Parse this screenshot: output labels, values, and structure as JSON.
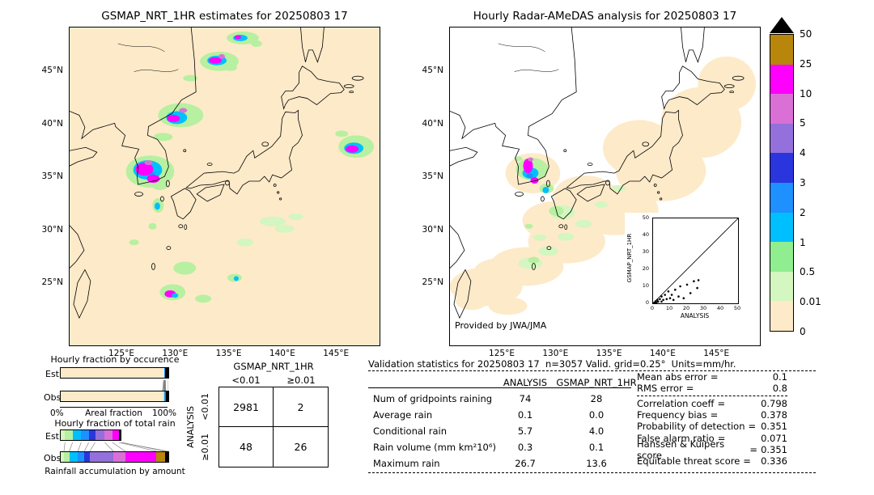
{
  "left_map": {
    "title": "GSMAP_NRT_1HR estimates for 20250803 17",
    "x_ticks": [
      "125°E",
      "130°E",
      "135°E",
      "140°E",
      "145°E"
    ],
    "y_ticks": [
      "45°N",
      "40°N",
      "35°N",
      "30°N",
      "25°N"
    ],
    "background": "#fdeac9",
    "blobs": [
      [
        215,
        13,
        20,
        8,
        "#b7f0a0"
      ],
      [
        232,
        20,
        7,
        4,
        "#b7f0a0"
      ],
      [
        212,
        13,
        9,
        4,
        "#00bfff"
      ],
      [
        209,
        12,
        4,
        2.5,
        "#ff00ff"
      ],
      [
        186,
        42,
        24,
        12,
        "#b7f0a0"
      ],
      [
        200,
        50,
        8,
        4,
        "#b7f0a0"
      ],
      [
        183,
        41,
        12,
        6,
        "#00bfff"
      ],
      [
        181,
        41,
        8,
        4,
        "#ff00ff"
      ],
      [
        189,
        36,
        4,
        3,
        "#da70d6"
      ],
      [
        150,
        63,
        9,
        4,
        "#b7f0a0"
      ],
      [
        138,
        109,
        28,
        15,
        "#b7f0a0"
      ],
      [
        133,
        112,
        13,
        8,
        "#00bfff"
      ],
      [
        129,
        113,
        8,
        4.5,
        "#ff00ff"
      ],
      [
        141,
        103,
        5,
        3,
        "#da70d6"
      ],
      [
        116,
        136,
        12,
        5,
        "#b7f0a0"
      ],
      [
        100,
        179,
        30,
        20,
        "#b7f0a0"
      ],
      [
        112,
        196,
        10,
        6,
        "#b7f0a0"
      ],
      [
        97,
        177,
        18,
        12,
        "#00bfff"
      ],
      [
        101,
        183,
        5,
        4,
        "#1e90ff"
      ],
      [
        93,
        176,
        11,
        8,
        "#ff00ff"
      ],
      [
        104,
        188,
        8,
        5,
        "#ff00ff"
      ],
      [
        98,
        168,
        5,
        3,
        "#da70d6"
      ],
      [
        110,
        221,
        7,
        9,
        "#b7f0a0"
      ],
      [
        109,
        222,
        3.5,
        4.5,
        "#00bfff"
      ],
      [
        103,
        247,
        5,
        4,
        "#b7f0a0"
      ],
      [
        80,
        267,
        6,
        3.5,
        "#b7f0a0"
      ],
      [
        356,
        148,
        22,
        14,
        "#b7f0a0"
      ],
      [
        338,
        132,
        8,
        4,
        "#b7f0a0"
      ],
      [
        353,
        150,
        12,
        7,
        "#00bfff"
      ],
      [
        351,
        151,
        8,
        4.5,
        "#ff00ff"
      ],
      [
        252,
        241,
        16,
        6,
        "#d4f6c0"
      ],
      [
        267,
        250,
        12,
        5,
        "#d4f6c0"
      ],
      [
        281,
        235,
        9,
        4,
        "#d4f6c0"
      ],
      [
        218,
        267,
        10,
        5,
        "#d4f6c0"
      ],
      [
        205,
        311,
        9,
        5,
        "#b7f0a0"
      ],
      [
        207,
        312,
        3,
        3,
        "#00bfff"
      ],
      [
        143,
        299,
        14,
        8,
        "#b7f0a0"
      ],
      [
        128,
        329,
        16,
        10,
        "#b7f0a0"
      ],
      [
        125,
        331,
        7,
        4.5,
        "#ff00ff"
      ],
      [
        131,
        333,
        4,
        3,
        "#00bfff"
      ],
      [
        166,
        337,
        10,
        5,
        "#b7f0a0"
      ]
    ]
  },
  "right_map": {
    "title": "Hourly Radar-AMeDAS analysis for 20250803 17",
    "credit": "Provided by JWA/JMA",
    "x_ticks": [
      "125°E",
      "130°E",
      "135°E",
      "140°E",
      "145°E"
    ],
    "y_ticks": [
      "45°N",
      "40°N",
      "35°N",
      "30°N",
      "25°N"
    ],
    "background": "#ffffff",
    "blobs": [
      [
        45,
        322,
        45,
        24,
        "#fdeac9"
      ],
      [
        95,
        297,
        46,
        24,
        "#fdeac9"
      ],
      [
        145,
        266,
        48,
        27,
        "#fdeac9"
      ],
      [
        205,
        227,
        54,
        31,
        "#fdeac9"
      ],
      [
        262,
        178,
        56,
        38,
        "#fdeac9"
      ],
      [
        312,
        118,
        50,
        44,
        "#fdeac9"
      ],
      [
        344,
        70,
        36,
        34,
        "#fdeac9"
      ],
      [
        103,
        181,
        34,
        25,
        "#fdeac9"
      ],
      [
        60,
        303,
        30,
        16,
        "#fdeac9"
      ],
      [
        27,
        340,
        20,
        11,
        "#fdeac9"
      ],
      [
        72,
        346,
        24,
        11,
        "#fdeac9"
      ],
      [
        130,
        240,
        40,
        24,
        "#fdeac9"
      ],
      [
        168,
        210,
        40,
        26,
        "#fdeac9"
      ],
      [
        235,
        150,
        45,
        35,
        "#fdeac9"
      ],
      [
        100,
        293,
        15,
        7,
        "#d4f6c0"
      ],
      [
        122,
        278,
        12,
        6,
        "#d4f6c0"
      ],
      [
        144,
        260,
        10,
        5,
        "#d4f6c0"
      ],
      [
        166,
        244,
        10,
        5,
        "#d4f6c0"
      ],
      [
        140,
        230,
        15,
        9,
        "#d4f6c0"
      ],
      [
        188,
        220,
        8,
        4,
        "#d4f6c0"
      ],
      [
        112,
        261,
        8,
        4,
        "#d4f6c0"
      ],
      [
        210,
        200,
        8,
        4,
        "#d4f6c0"
      ],
      [
        132,
        228,
        9,
        6,
        "#b7f0a0"
      ],
      [
        104,
        289,
        7,
        4,
        "#b7f0a0"
      ],
      [
        85,
        163,
        5,
        3,
        "#b7f0a0"
      ],
      [
        120,
        200,
        9,
        6,
        "#b7f0a0"
      ],
      [
        98,
        247,
        5,
        3,
        "#b7f0a0"
      ],
      [
        102,
        176,
        20,
        14,
        "#b7f0a0"
      ],
      [
        100,
        181,
        10,
        7,
        "#00bfff"
      ],
      [
        99,
        184,
        4,
        3,
        "#1e90ff"
      ],
      [
        97,
        172,
        6,
        9,
        "#ff00ff"
      ],
      [
        105,
        190,
        5,
        4,
        "#ff00ff"
      ],
      [
        100,
        164,
        3.5,
        2.5,
        "#da70d6"
      ],
      [
        119,
        202,
        4,
        4,
        "#00bfff"
      ]
    ],
    "inset": {
      "ylabel": "GSMAP_NRT_1HR",
      "xlabel": "ANALYSIS",
      "x_ticks": [
        "0",
        "10",
        "20",
        "30",
        "40",
        "50"
      ],
      "y_ticks": [
        "0",
        "10",
        "20",
        "30",
        "40",
        "50"
      ]
    }
  },
  "colorbar": {
    "labels": [
      "50",
      "25",
      "10",
      "5",
      "4",
      "3",
      "2",
      "1",
      "0.5",
      "0.01",
      "0"
    ],
    "colors": [
      "#b8860b",
      "#ff00ff",
      "#da70d6",
      "#9370db",
      "#2a35dd",
      "#1e90ff",
      "#00bfff",
      "#90ee90",
      "#d4f6c0",
      "#fdeac9"
    ],
    "overflow_color": "#000000"
  },
  "fractions": {
    "occurrence_title": "Hourly fraction by occurence",
    "total_title": "Hourly fraction of total rain",
    "est_label": "Est",
    "obs_label": "Obs",
    "axis_left": "0%",
    "axis_center": "Areal fraction",
    "axis_right": "100%",
    "bottom_label": "Rainfall accumulation by amount",
    "occurrence": {
      "est": [
        [
          "#fdeac9",
          95.6
        ],
        [
          "#d4f6c0",
          0.4
        ],
        [
          "#b7f0a0",
          0.3
        ],
        [
          "#00bfff",
          0.3
        ],
        [
          "#1e90ff",
          0.2
        ],
        [
          "#9370db",
          0.2
        ],
        [
          "#ff00ff",
          0.4
        ],
        [
          "#000000",
          2.6
        ]
      ],
      "obs": [
        [
          "#fdeac9",
          94.6
        ],
        [
          "#d4f6c0",
          0.8
        ],
        [
          "#b7f0a0",
          0.6
        ],
        [
          "#00bfff",
          0.5
        ],
        [
          "#1e90ff",
          0.3
        ],
        [
          "#9370db",
          0.3
        ],
        [
          "#ff00ff",
          0.4
        ],
        [
          "#000000",
          2.5
        ]
      ]
    },
    "total": {
      "est": [
        [
          "#d4f6c0",
          4
        ],
        [
          "#b7f0a0",
          7
        ],
        [
          "#00bfff",
          8
        ],
        [
          "#1e90ff",
          7
        ],
        [
          "#2a35dd",
          6
        ],
        [
          "#9370db",
          9
        ],
        [
          "#da70d6",
          7
        ],
        [
          "#ff00ff",
          6
        ],
        [
          "#000000",
          2
        ]
      ],
      "obs": [
        [
          "#d4f6c0",
          3
        ],
        [
          "#b7f0a0",
          5
        ],
        [
          "#00bfff",
          8
        ],
        [
          "#1e90ff",
          6
        ],
        [
          "#2a35dd",
          5
        ],
        [
          "#9370db",
          22
        ],
        [
          "#da70d6",
          11
        ],
        [
          "#ff00ff",
          29
        ],
        [
          "#b8860b",
          8
        ],
        [
          "#000000",
          3
        ]
      ]
    }
  },
  "contingency": {
    "title": "GSMAP_NRT_1HR",
    "col_headers": [
      "<0.01",
      "≥0.01"
    ],
    "row_axis": "ANALYSIS",
    "row_headers": [
      "<0.01",
      "≥0.01"
    ],
    "cells": [
      [
        "2981",
        "2"
      ],
      [
        "48",
        "26"
      ]
    ]
  },
  "validation": {
    "title": "Validation statistics for 20250803 17  n=3057 Valid. grid=0.25°  Units=mm/hr.",
    "eq": "=",
    "columns": [
      "ANALYSIS",
      "GSMAP_NRT_1HR"
    ],
    "rows": [
      {
        "label": "Num of gridpoints raining",
        "analysis": "74",
        "gsmap": "28"
      },
      {
        "label": "Average rain",
        "analysis": "0.1",
        "gsmap": "0.0"
      },
      {
        "label": "Conditional rain",
        "analysis": "5.7",
        "gsmap": "4.0"
      },
      {
        "label": "Rain volume (mm km²10⁶)",
        "analysis": "0.3",
        "gsmap": "0.1"
      },
      {
        "label": "Maximum rain",
        "analysis": "26.7",
        "gsmap": "13.6"
      }
    ],
    "stats": [
      {
        "label": "Mean abs error",
        "value": "0.1"
      },
      {
        "label": "RMS error",
        "value": "0.8"
      },
      {
        "label": "Correlation coeff",
        "value": "0.798"
      },
      {
        "label": "Frequency bias",
        "value": "0.378"
      },
      {
        "label": "Probability of detection",
        "value": "0.351"
      },
      {
        "label": "False alarm ratio",
        "value": "0.071"
      },
      {
        "label": "Hanssen & Kuipers score",
        "value": "0.351"
      },
      {
        "label": "Equitable threat score",
        "value": "0.336"
      }
    ]
  },
  "chart_data": [
    {
      "type": "heatmap",
      "name": "gsmap_nrt_precip_map",
      "title": "GSMAP_NRT_1HR estimates for 20250803 17",
      "units": "mm/hr",
      "x_ticks": [
        "125°E",
        "130°E",
        "135°E",
        "140°E",
        "145°E"
      ],
      "y_ticks": [
        "45°N",
        "40°N",
        "35°N",
        "30°N",
        "25°N"
      ],
      "legend_levels": [
        0,
        0.01,
        0.5,
        1,
        2,
        3,
        4,
        5,
        10,
        25,
        50
      ]
    },
    {
      "type": "heatmap",
      "name": "radar_amedas_precip_map",
      "title": "Hourly Radar-AMeDAS analysis for 20250803 17",
      "units": "mm/hr",
      "x_ticks": [
        "125°E",
        "130°E",
        "135°E",
        "140°E",
        "145°E"
      ],
      "y_ticks": [
        "45°N",
        "40°N",
        "35°N",
        "30°N",
        "25°N"
      ],
      "legend_levels": [
        0,
        0.01,
        0.5,
        1,
        2,
        3,
        4,
        5,
        10,
        25,
        50
      ]
    },
    {
      "type": "scatter",
      "name": "gsmap_vs_analysis_inset",
      "xlabel": "ANALYSIS",
      "ylabel": "GSMAP_NRT_1HR",
      "xlim": [
        0,
        50
      ],
      "ylim": [
        0,
        50
      ],
      "points": [
        [
          0.5,
          0.2
        ],
        [
          1,
          0.5
        ],
        [
          1.5,
          1.2
        ],
        [
          2,
          0.6
        ],
        [
          2.5,
          2
        ],
        [
          3,
          1
        ],
        [
          4,
          2.5
        ],
        [
          5,
          1
        ],
        [
          5,
          4
        ],
        [
          6,
          2
        ],
        [
          7,
          5
        ],
        [
          8,
          2.5
        ],
        [
          9,
          7
        ],
        [
          10,
          3
        ],
        [
          11,
          5
        ],
        [
          12,
          2
        ],
        [
          13,
          8
        ],
        [
          15,
          4
        ],
        [
          16,
          10
        ],
        [
          18,
          3
        ],
        [
          20,
          11
        ],
        [
          22,
          6
        ],
        [
          24,
          13
        ],
        [
          26,
          9
        ],
        [
          26.7,
          13.6
        ]
      ]
    },
    {
      "type": "table",
      "name": "contingency_table",
      "columns": [
        "GSMAP_NRT_1HR <0.01",
        "GSMAP_NRT_1HR ≥0.01"
      ],
      "rows": [
        "ANALYSIS <0.01",
        "ANALYSIS ≥0.01"
      ],
      "values": [
        [
          2981,
          2
        ],
        [
          48,
          26
        ]
      ]
    },
    {
      "type": "table",
      "name": "validation_statistics",
      "categories": [
        "Num of gridpoints raining",
        "Average rain",
        "Conditional rain",
        "Rain volume (mm km²10⁶)",
        "Maximum rain"
      ],
      "series": [
        {
          "name": "ANALYSIS",
          "values": [
            74,
            0.1,
            5.7,
            0.3,
            26.7
          ]
        },
        {
          "name": "GSMAP_NRT_1HR",
          "values": [
            28,
            0.0,
            4.0,
            0.1,
            13.6
          ]
        }
      ]
    },
    {
      "type": "table",
      "name": "skill_scores",
      "labels": [
        "Mean abs error",
        "RMS error",
        "Correlation coeff",
        "Frequency bias",
        "Probability of detection",
        "False alarm ratio",
        "Hanssen & Kuipers score",
        "Equitable threat score"
      ],
      "values": [
        0.1,
        0.8,
        0.798,
        0.378,
        0.351,
        0.071,
        0.351,
        0.336
      ]
    }
  ]
}
